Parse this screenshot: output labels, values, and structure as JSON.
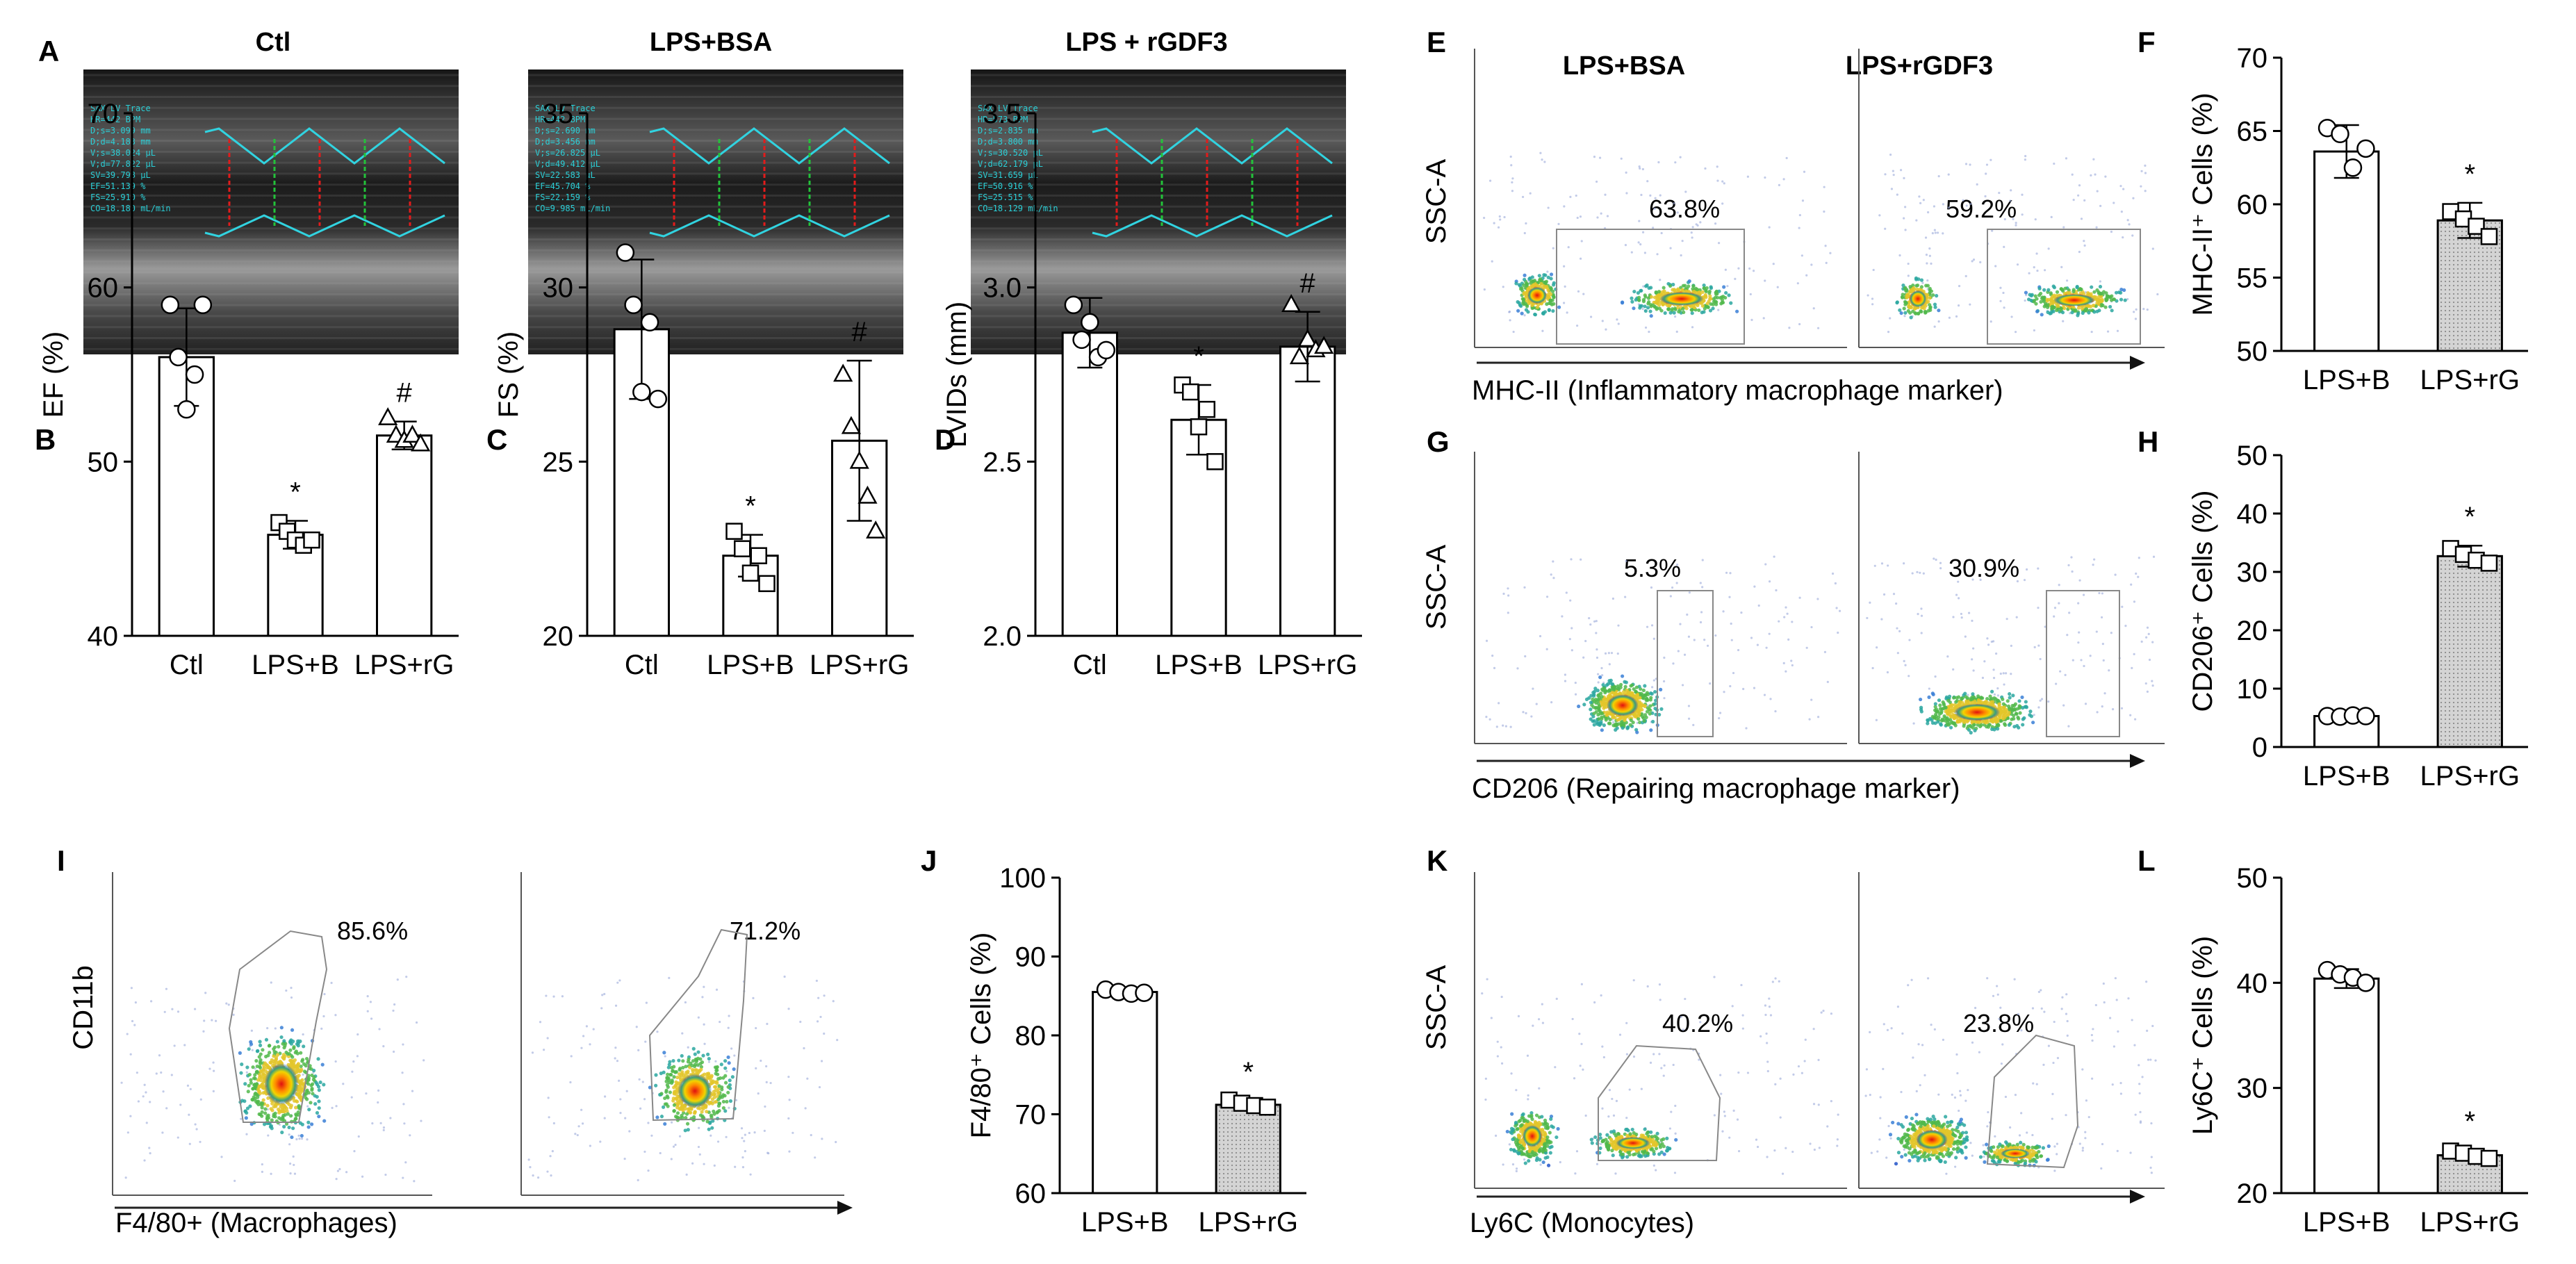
{
  "panel_letters": {
    "A": "A",
    "B": "B",
    "C": "C",
    "D": "D",
    "E": "E",
    "F": "F",
    "G": "G",
    "H": "H",
    "I": "I",
    "J": "J",
    "K": "K",
    "L": "L"
  },
  "echo": {
    "headers": [
      "Ctl",
      "LPS+BSA",
      "LPS + rGDF3"
    ],
    "readouts": [
      [
        "SAX LV Trace",
        "HR=442 BPM",
        "D;s=3.099 mm",
        "D;d=4.183 mm",
        "V;s=38.024 µL",
        "V;d=77.822 µL",
        "SV=39.798 µL",
        "EF=51.139 %",
        "FS=25.910 %",
        "CO=18.180 mL/min"
      ],
      [
        "SAX LV Trace",
        "HR=442 BPM",
        "D;s=2.690 mm",
        "D;d=3.456 mm",
        "V;s=26.825 µL",
        "V;d=49.412 µL",
        "SV=22.583 µL",
        "EF=45.704 %",
        "FS=22.159 %",
        "CO=9.985 mL/min"
      ],
      [
        "SAX LV Trace",
        "HR=573 BPM",
        "D;s=2.835 mm",
        "D;d=3.800 mm",
        "V;s=30.520 µL",
        "V;d=62.179 µL",
        "SV=31.659 µL",
        "EF=50.916 %",
        "FS=25.515 %",
        "CO=18.129 mL/min"
      ]
    ]
  },
  "flow": {
    "E": {
      "yaxis": "SSC-A",
      "xaxis": "MHC-II (Inflammatory macrophage marker)",
      "headers": [
        "LPS+BSA",
        "LPS+rGDF3"
      ],
      "gates": [
        "63.8%",
        "59.2%"
      ]
    },
    "G": {
      "yaxis": "SSC-A",
      "xaxis": "CD206 (Repairing macrophage marker)",
      "gates": [
        "5.3%",
        "30.9%"
      ]
    },
    "I": {
      "yaxis": "CD11b",
      "xaxis": "F4/80+ (Macrophages)",
      "gates": [
        "85.6%",
        "71.2%"
      ]
    },
    "K": {
      "yaxis": "SSC-A",
      "xaxis": "Ly6C (Monocytes)",
      "gates": [
        "40.2%",
        "23.8%"
      ]
    }
  },
  "chart_data": [
    {
      "id": "B",
      "type": "bar",
      "ylabel": "EF (%)",
      "categories": [
        "Ctl",
        "LPS+B",
        "LPS+rG"
      ],
      "values": [
        56,
        45.8,
        51.5
      ],
      "errors": [
        2.8,
        0.8,
        0.8
      ],
      "points": [
        [
          59,
          56,
          53,
          55,
          59
        ],
        [
          46.5,
          46,
          45.5,
          45.2,
          45.5
        ],
        [
          52.5,
          51.5,
          51.2,
          51.5,
          51
        ]
      ],
      "markers": [
        "circle",
        "square",
        "triangle"
      ],
      "fills": [
        "#fff",
        "#fff",
        "#fff"
      ],
      "significance": [
        "",
        "*",
        "#"
      ],
      "ylim": [
        40,
        70
      ],
      "yticks": [
        "40",
        "50",
        "60",
        "70"
      ]
    },
    {
      "id": "C",
      "type": "bar",
      "ylabel": "FS (%)",
      "categories": [
        "Ctl",
        "LPS+B",
        "LPS+rG"
      ],
      "values": [
        28.8,
        22.3,
        25.6
      ],
      "errors": [
        2,
        0.6,
        2.3
      ],
      "points": [
        [
          31,
          29.5,
          27,
          29,
          26.8
        ],
        [
          23,
          22.5,
          21.8,
          22.3,
          21.5
        ],
        [
          27.5,
          26,
          25,
          24,
          23
        ]
      ],
      "markers": [
        "circle",
        "square",
        "triangle"
      ],
      "fills": [
        "#fff",
        "#fff",
        "#fff"
      ],
      "significance": [
        "",
        "*",
        "#"
      ],
      "ylim": [
        20,
        35
      ],
      "yticks": [
        "20",
        "25",
        "30",
        "35"
      ]
    },
    {
      "id": "D",
      "type": "bar",
      "ylabel": "LVIDs (mm)",
      "categories": [
        "Ctl",
        "LPS+B",
        "LPS+rG"
      ],
      "values": [
        2.87,
        2.62,
        2.83
      ],
      "errors": [
        0.1,
        0.1,
        0.1
      ],
      "points": [
        [
          2.95,
          2.85,
          2.9,
          2.8,
          2.82
        ],
        [
          2.72,
          2.7,
          2.6,
          2.65,
          2.5
        ],
        [
          2.95,
          2.8,
          2.85,
          2.82,
          2.83
        ]
      ],
      "markers": [
        "circle",
        "square",
        "triangle"
      ],
      "fills": [
        "#fff",
        "#fff",
        "#fff"
      ],
      "significance": [
        "",
        "*",
        "#"
      ],
      "ylim": [
        2.0,
        3.5
      ],
      "yticks": [
        "2.0",
        "2.5",
        "3.0",
        "3.5"
      ]
    },
    {
      "id": "F",
      "type": "bar",
      "ylabel": "MHC-II⁺ Cells (%)",
      "categories": [
        "LPS+B",
        "LPS+rG"
      ],
      "values": [
        63.6,
        58.9
      ],
      "errors": [
        1.8,
        1.2
      ],
      "points": [
        [
          65.2,
          64.8,
          62.5,
          63.8
        ],
        [
          59.5,
          59,
          58.5,
          57.8
        ]
      ],
      "markers": [
        "circle",
        "square"
      ],
      "fills": [
        "#fff",
        "#cccccc"
      ],
      "significance": [
        "",
        "*"
      ],
      "ylim": [
        50,
        70
      ],
      "yticks": [
        "50",
        "55",
        "60",
        "65",
        "70"
      ]
    },
    {
      "id": "H",
      "type": "bar",
      "ylabel": "CD206⁺ Cells (%)",
      "categories": [
        "LPS+B",
        "LPS+rG"
      ],
      "values": [
        5.3,
        32.7
      ],
      "errors": [
        0.3,
        1.8
      ],
      "points": [
        [
          5.3,
          5.2,
          5.4,
          5.3
        ],
        [
          34,
          33,
          32,
          31.5
        ]
      ],
      "markers": [
        "circle",
        "square"
      ],
      "fills": [
        "#fff",
        "#cccccc"
      ],
      "significance": [
        "",
        "*"
      ],
      "ylim": [
        0,
        50
      ],
      "yticks": [
        "0",
        "10",
        "20",
        "30",
        "40",
        "50"
      ]
    },
    {
      "id": "J",
      "type": "bar",
      "ylabel": "F4/80⁺ Cells (%)",
      "categories": [
        "LPS+B",
        "LPS+rG"
      ],
      "values": [
        85.5,
        71.2
      ],
      "errors": [
        0.4,
        0.5
      ],
      "points": [
        [
          85.8,
          85.5,
          85.3,
          85.4
        ],
        [
          71.8,
          71.4,
          71.1,
          70.9
        ]
      ],
      "markers": [
        "circle",
        "square"
      ],
      "fills": [
        "#fff",
        "#cccccc"
      ],
      "significance": [
        "",
        "*"
      ],
      "ylim": [
        60,
        100
      ],
      "yticks": [
        "60",
        "70",
        "80",
        "90",
        "100"
      ]
    },
    {
      "id": "L",
      "type": "bar",
      "ylabel": "Ly6C⁺ Cells (%)",
      "categories": [
        "LPS+B",
        "LPS+rG"
      ],
      "values": [
        40.4,
        23.6
      ],
      "errors": [
        0.9,
        0.5
      ],
      "points": [
        [
          41.2,
          40.8,
          40.5,
          40.0
        ],
        [
          24.0,
          23.8,
          23.5,
          23.3
        ]
      ],
      "markers": [
        "circle",
        "square"
      ],
      "fills": [
        "#fff",
        "#cccccc"
      ],
      "significance": [
        "",
        "*"
      ],
      "ylim": [
        20,
        50
      ],
      "yticks": [
        "20",
        "30",
        "40",
        "50"
      ]
    }
  ]
}
